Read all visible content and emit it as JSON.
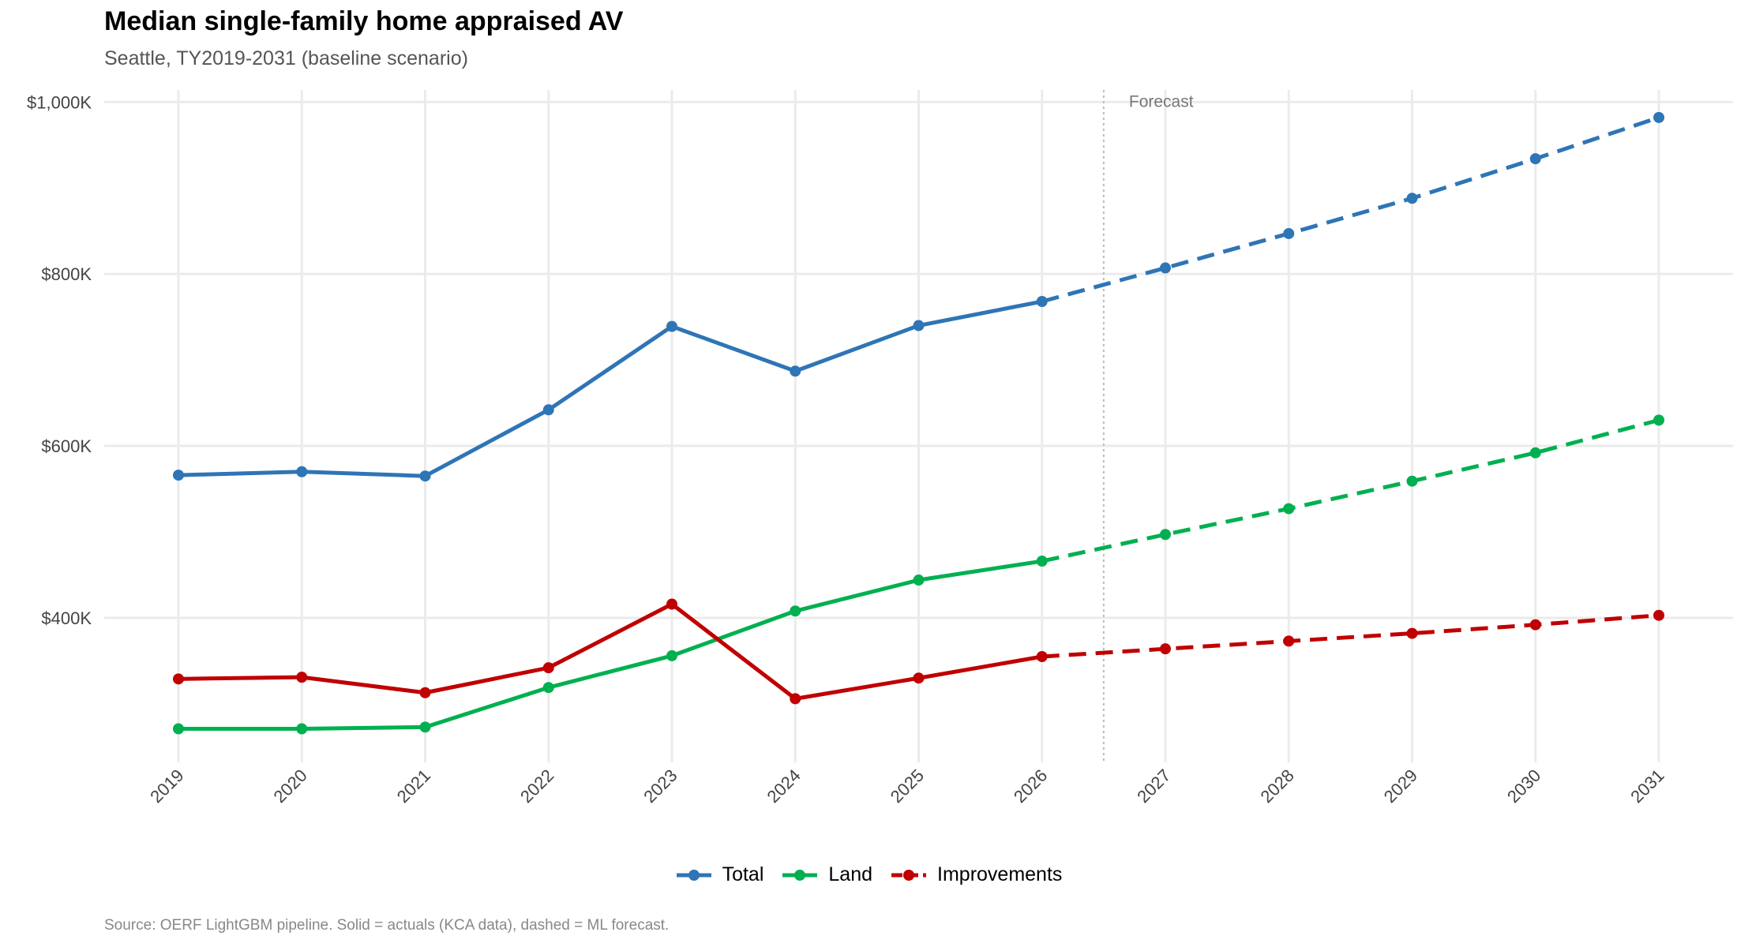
{
  "chart_data": {
    "type": "line",
    "title": "Median single-family home appraised AV",
    "subtitle": "Seattle, TY2019-2031 (baseline scenario)",
    "caption": "Source: OERF LightGBM pipeline. Solid = actuals (KCA data), dashed = ML forecast.",
    "annotation": "Forecast",
    "xlabel": "",
    "ylabel": "",
    "x": [
      "2019",
      "2020",
      "2021",
      "2022",
      "2023",
      "2024",
      "2025",
      "2026",
      "2027",
      "2028",
      "2029",
      "2030",
      "2031"
    ],
    "forecast_start": "2027",
    "y_ticks": [
      400,
      600,
      800,
      1000
    ],
    "y_tick_labels": [
      "$400K",
      "$600K",
      "$800K",
      "$1,000K"
    ],
    "y_unit": "$K",
    "ylim": [
      232,
      1014
    ],
    "grid": true,
    "legend_position": "bottom",
    "series": [
      {
        "name": "Total",
        "color": "#2E75B6",
        "values": [
          566,
          570,
          565,
          642,
          739,
          687,
          740,
          768,
          807,
          847,
          888,
          934,
          982
        ]
      },
      {
        "name": "Land",
        "color": "#00B050",
        "values": [
          271,
          271,
          273,
          319,
          356,
          408,
          444,
          466,
          497,
          527,
          559,
          592,
          630
        ]
      },
      {
        "name": "Improvements",
        "color": "#C00000",
        "values": [
          329,
          331,
          313,
          342,
          416,
          306,
          330,
          355,
          364,
          373,
          382,
          392,
          403
        ]
      }
    ]
  }
}
